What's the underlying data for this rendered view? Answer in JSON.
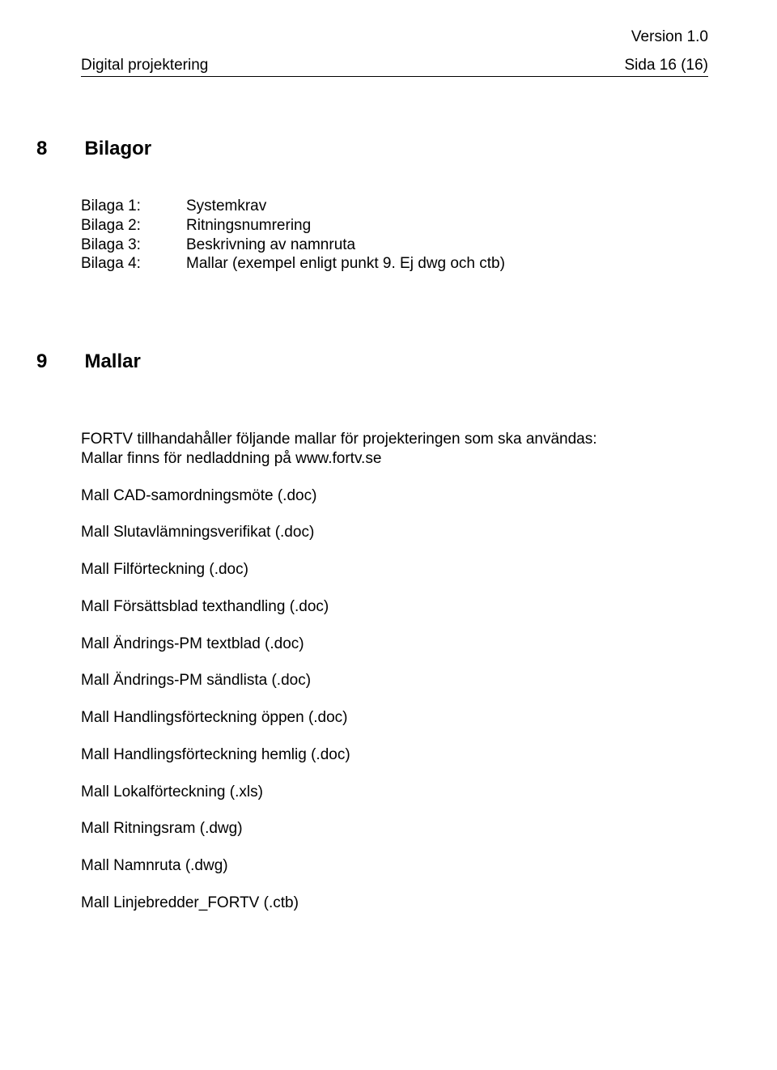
{
  "version_label": "Version 1.0",
  "header": {
    "left": "Digital projektering",
    "right": "Sida  16 (16)"
  },
  "section8": {
    "number": "8",
    "title": "Bilagor",
    "items": [
      {
        "key": "Bilaga 1:",
        "value": "Systemkrav"
      },
      {
        "key": "Bilaga 2:",
        "value": "Ritningsnumrering"
      },
      {
        "key": "Bilaga 3:",
        "value": "Beskrivning av namnruta"
      },
      {
        "key": "Bilaga 4:",
        "value": "Mallar (exempel enligt punkt 9. Ej dwg och ctb)"
      }
    ]
  },
  "section9": {
    "number": "9",
    "title": "Mallar",
    "intro_line1": "FORTV tillhandahåller följande mallar för projekteringen som ska användas:",
    "intro_line2": "Mallar finns för nedladdning på www.fortv.se",
    "mall_items": [
      "Mall CAD-samordningsmöte (.doc)",
      "Mall Slutavlämningsverifikat (.doc)",
      "Mall Filförteckning (.doc)",
      "Mall Försättsblad texthandling (.doc)",
      "Mall Ändrings-PM textblad (.doc)",
      "Mall Ändrings-PM sändlista (.doc)",
      "Mall Handlingsförteckning öppen (.doc)",
      "Mall Handlingsförteckning hemlig (.doc)",
      "Mall Lokalförteckning (.xls)",
      "Mall Ritningsram (.dwg)",
      "Mall Namnruta (.dwg)",
      "Mall Linjebredder_FORTV (.ctb)"
    ]
  },
  "colors": {
    "text": "#000000",
    "background": "#ffffff",
    "rule": "#000000"
  },
  "typography": {
    "body_fontsize_pt": 14,
    "heading_fontsize_pt": 18,
    "font_family": "Arial"
  }
}
